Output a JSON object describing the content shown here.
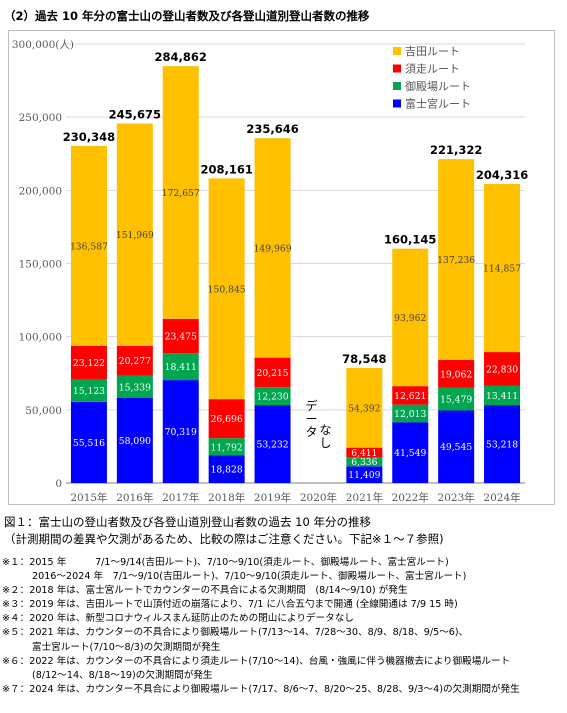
{
  "heading": "（2）過去 10 年分の富士山の登山者数及び各登山道別登山者数の推移",
  "chart_data": {
    "type": "bar",
    "stacked": true,
    "categories": [
      "2015年",
      "2016年",
      "2017年",
      "2018年",
      "2019年",
      "2020年",
      "2021年",
      "2022年",
      "2023年",
      "2024年"
    ],
    "ylim": [
      0,
      300000
    ],
    "yticks": [
      0,
      50000,
      100000,
      150000,
      200000,
      250000,
      300000
    ],
    "ytick_labels": [
      "0",
      "50,000",
      "100,000",
      "150,000",
      "200,000",
      "250,000",
      "300,000"
    ],
    "yunit": "(人)",
    "grid": true,
    "legend_position": "top-right",
    "series": [
      {
        "name": "富士宮ルート",
        "color": "#0000ff",
        "values": [
          55516,
          58090,
          70319,
          18828,
          53232,
          null,
          11409,
          41549,
          49545,
          53218
        ],
        "labels": [
          "55,516",
          "58,090",
          "70,319",
          "18,828",
          "53,232",
          "",
          "11,409",
          "41,549",
          "49,545",
          "53,218"
        ]
      },
      {
        "name": "御殿場ルート",
        "color": "#00a550",
        "values": [
          15123,
          15339,
          18411,
          11792,
          12230,
          null,
          6336,
          12013,
          15479,
          13411
        ],
        "labels": [
          "15,123",
          "15,339",
          "18,411",
          "11,792",
          "12,230",
          "",
          "6,336",
          "12,013",
          "15,479",
          "13,411"
        ]
      },
      {
        "name": "須走ルート",
        "color": "#ff0000",
        "values": [
          23122,
          20277,
          23475,
          26696,
          20215,
          null,
          6411,
          12621,
          19062,
          22830
        ],
        "labels": [
          "23,122",
          "20,277",
          "23,475",
          "26,696",
          "20,215",
          "",
          "6,411",
          "12,621",
          "19,062",
          "22,830"
        ]
      },
      {
        "name": "吉田ルート",
        "color": "#ffc000",
        "values": [
          136587,
          151969,
          172657,
          150845,
          149969,
          null,
          54392,
          93962,
          137236,
          114857
        ],
        "labels": [
          "136,587",
          "151,969",
          "172,657",
          "150,845",
          "149,969",
          "",
          "54,392",
          "93,962",
          "137,236",
          "114,857"
        ]
      }
    ],
    "totals": [
      230348,
      245675,
      284862,
      208161,
      235646,
      null,
      78548,
      160145,
      221322,
      204316
    ],
    "total_labels": [
      "230,348",
      "245,675",
      "284,862",
      "208,161",
      "235,646",
      "",
      "78,548",
      "160,145",
      "221,322",
      "204,316"
    ],
    "annotation": "データなし",
    "legend_order": [
      "吉田ルート",
      "須走ルート",
      "御殿場ルート",
      "富士宮ルート"
    ]
  },
  "caption": "図１：富士山の登山者数及び各登山道別登山者数の過去 10 年分の推移",
  "caption_sub": "（計測期間の差異や欠測があるため、比較の際はご注意ください。下記※１～７参照)",
  "notes": [
    "※１：2015 年　　　7/1～9/14(吉田ルート)、7/10～9/10(須走ルート、御殿場ルート、富士宮ルート)",
    "2016～2024 年　7/1～9/10(吉田ルート)、7/10～9/10(須走ルート、御殿場ルート、富士宮ルート)",
    "※２：2018 年は、富士宮ルートでカウンターの不具合による欠測期間　(8/14～9/10) が発生",
    "※３：2019 年は、吉田ルートで山頂付近の崩落により、7/1 に八合五勺まで開通 (全線開通は 7/9 15 時)",
    "※４：2020 年は、新型コロナウィルスまん延防止のための閉山によりデータなし",
    "※５：2021 年は、カウンターの不具合により御殿場ルート(7/13～14、7/28～30、8/9、8/18、9/5～6)、",
    "富士宮ルート(7/10～8/3)の欠測期間が発生",
    "※６：2022 年は、カウンターの不具合により須走ルート(7/10～14)、台風・強風に伴う機器撤去により御殿場ルート",
    "(8/12～14、8/18～19)の欠測期間が発生",
    "※７：2024 年は、カウンター不具合により御殿場ルート(7/17、8/6～7、8/20～25、8/28、9/3～4)の欠測期間が発生"
  ]
}
